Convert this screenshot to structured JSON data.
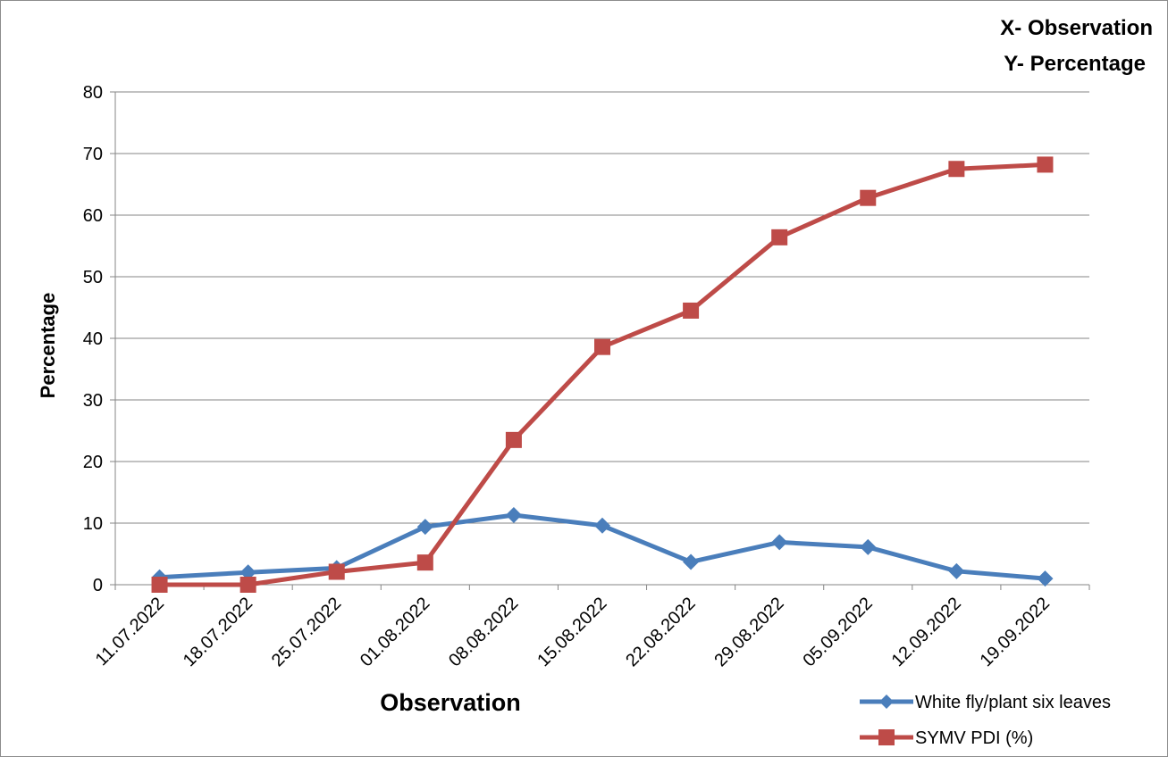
{
  "chart_data": {
    "type": "line",
    "xlabel": "Observation",
    "ylabel": "Percentage",
    "corner_notes": [
      "X- Observation",
      "Y- Percentage"
    ],
    "categories": [
      "11.07.2022",
      "18.07.2022",
      "25.07.2022",
      "01.08.2022",
      "08.08.2022",
      "15.08.2022",
      "22.08.2022",
      "29.08.2022",
      "05.09.2022",
      "12.09.2022",
      "19.09.2022"
    ],
    "ylim": [
      0,
      80
    ],
    "yticks": [
      0,
      10,
      20,
      30,
      40,
      50,
      60,
      70,
      80
    ],
    "grid": "horizontal",
    "legend_position": "bottom-right",
    "series": [
      {
        "name": "White fly/plant six leaves",
        "color": "#4A7EBB",
        "marker": "diamond",
        "values": [
          1.2,
          2.0,
          2.7,
          9.4,
          11.3,
          9.6,
          3.7,
          6.9,
          6.1,
          2.2,
          1.0
        ]
      },
      {
        "name": "SYMV PDI (%)",
        "color": "#BE4B48",
        "marker": "square",
        "values": [
          0.0,
          0.0,
          2.1,
          3.6,
          23.5,
          38.6,
          44.5,
          56.4,
          62.8,
          67.5,
          68.2
        ]
      }
    ]
  }
}
